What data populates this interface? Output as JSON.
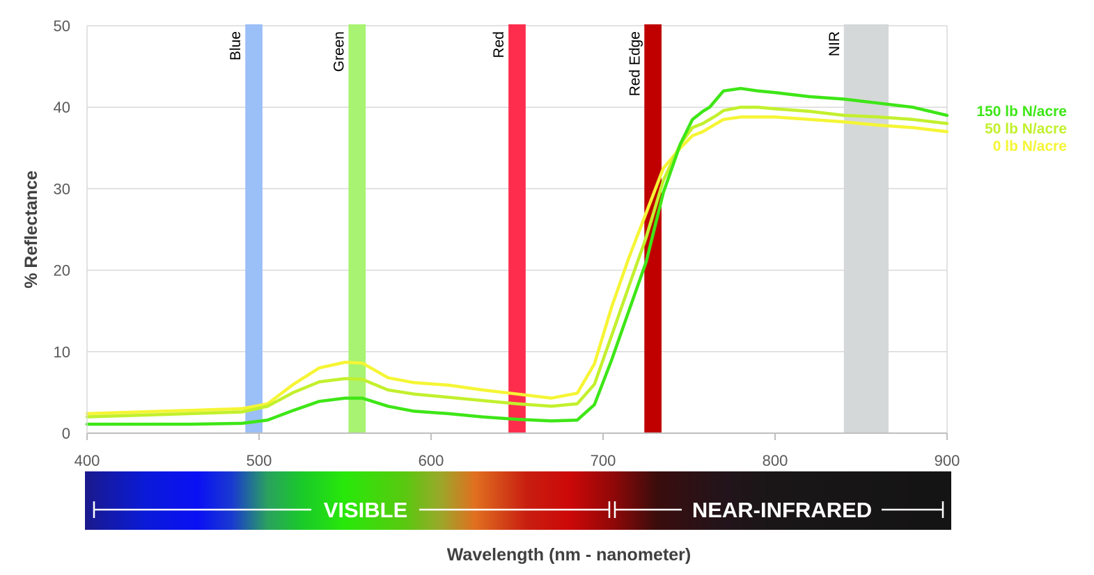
{
  "chart_data": {
    "type": "line",
    "xlabel": "Wavelength (nm - nanometer)",
    "ylabel": "% Reflectance",
    "xlim": [
      400,
      900
    ],
    "ylim": [
      0,
      50
    ],
    "x_ticks": [
      400,
      500,
      600,
      700,
      800,
      900
    ],
    "y_ticks": [
      0,
      10,
      20,
      30,
      40,
      50
    ],
    "grid": "horizontal",
    "legend_placement": "right, next to line ends",
    "bands": [
      {
        "name": "Blue",
        "range": [
          492,
          502
        ],
        "color": "#9bbff7"
      },
      {
        "name": "Green",
        "range": [
          552,
          562
        ],
        "color": "#a8f371"
      },
      {
        "name": "Red",
        "range": [
          645,
          655
        ],
        "color": "#ff2d4d"
      },
      {
        "name": "Red Edge",
        "range": [
          724,
          734
        ],
        "color": "#c00000"
      },
      {
        "name": "NIR",
        "range": [
          840,
          866
        ],
        "color": "#d5d8d8"
      }
    ],
    "series": [
      {
        "name": "150 lb N/acre",
        "color": "#3ee617",
        "x": [
          400,
          430,
          460,
          490,
          505,
          520,
          535,
          550,
          560,
          575,
          590,
          610,
          630,
          650,
          670,
          685,
          695,
          705,
          715,
          725,
          735,
          745,
          752,
          758,
          762,
          766,
          770,
          780,
          790,
          800,
          820,
          840,
          860,
          880,
          900
        ],
        "y": [
          1.1,
          1.1,
          1.1,
          1.2,
          1.6,
          2.8,
          3.9,
          4.3,
          4.3,
          3.3,
          2.7,
          2.4,
          2.0,
          1.7,
          1.5,
          1.6,
          3.5,
          9.0,
          15.0,
          21.0,
          29.5,
          35.5,
          38.5,
          39.5,
          40.0,
          41.0,
          42.0,
          42.3,
          42.0,
          41.8,
          41.3,
          41.0,
          40.5,
          40.0,
          39.0
        ]
      },
      {
        "name": "50 lb N/acre",
        "color": "#c2f02d",
        "x": [
          400,
          430,
          460,
          490,
          505,
          520,
          535,
          550,
          560,
          575,
          590,
          610,
          630,
          650,
          670,
          685,
          695,
          705,
          715,
          725,
          735,
          745,
          752,
          758,
          762,
          766,
          770,
          780,
          790,
          800,
          820,
          840,
          860,
          880,
          900
        ],
        "y": [
          2.0,
          2.2,
          2.4,
          2.6,
          3.3,
          5.0,
          6.3,
          6.7,
          6.6,
          5.3,
          4.8,
          4.4,
          4.0,
          3.6,
          3.3,
          3.6,
          6.0,
          12.0,
          18.0,
          24.0,
          31.0,
          35.5,
          37.5,
          38.0,
          38.5,
          39.0,
          39.6,
          40.0,
          40.0,
          39.8,
          39.5,
          39.0,
          38.8,
          38.5,
          38.0
        ]
      },
      {
        "name": "0 lb N/acre",
        "color": "#f5f535",
        "x": [
          400,
          430,
          460,
          490,
          505,
          520,
          535,
          550,
          560,
          575,
          590,
          610,
          630,
          650,
          670,
          685,
          695,
          705,
          715,
          725,
          735,
          745,
          752,
          758,
          762,
          766,
          770,
          780,
          790,
          800,
          820,
          840,
          860,
          880,
          900
        ],
        "y": [
          2.4,
          2.6,
          2.8,
          3.0,
          3.6,
          6.0,
          8.0,
          8.7,
          8.6,
          6.8,
          6.2,
          5.9,
          5.3,
          4.8,
          4.3,
          4.9,
          8.5,
          15.5,
          21.5,
          27.0,
          32.5,
          35.0,
          36.5,
          37.0,
          37.5,
          38.0,
          38.5,
          38.8,
          38.8,
          38.8,
          38.5,
          38.2,
          37.8,
          37.5,
          37.0
        ]
      }
    ],
    "spectrum_bar": {
      "visible_label": "VISIBLE",
      "visible_range": [
        400,
        700
      ],
      "nir_label": "NEAR-INFRARED",
      "nir_range": [
        700,
        900
      ]
    }
  }
}
